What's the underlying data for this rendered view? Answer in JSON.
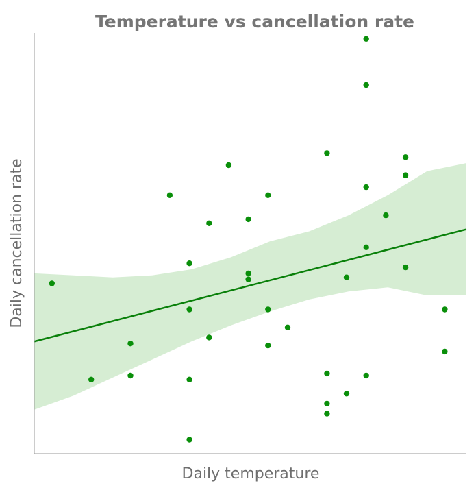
{
  "chart_data": {
    "type": "scatter",
    "title": "Temperature vs cancellation rate",
    "xlabel": "Daily temperature",
    "ylabel": "Daily cancellation rate",
    "xlim": [
      0,
      22
    ],
    "ylim": [
      0,
      21
    ],
    "grid": false,
    "colors": {
      "points": "#0a8f0a",
      "trend_line": "#0a800a",
      "confidence_band": "#d6edd3"
    },
    "series": [
      {
        "points": [
          {
            "x": 0.9,
            "y": 8.5
          },
          {
            "x": 2.9,
            "y": 3.7
          },
          {
            "x": 4.9,
            "y": 3.9
          },
          {
            "x": 4.9,
            "y": 5.5
          },
          {
            "x": 6.9,
            "y": 12.9
          },
          {
            "x": 7.9,
            "y": 9.5
          },
          {
            "x": 7.9,
            "y": 7.2
          },
          {
            "x": 7.9,
            "y": 3.7
          },
          {
            "x": 7.9,
            "y": 0.7
          },
          {
            "x": 8.9,
            "y": 11.5
          },
          {
            "x": 8.9,
            "y": 5.8
          },
          {
            "x": 9.9,
            "y": 14.4
          },
          {
            "x": 10.9,
            "y": 11.7
          },
          {
            "x": 10.9,
            "y": 9.0
          },
          {
            "x": 10.9,
            "y": 8.7
          },
          {
            "x": 11.9,
            "y": 12.9
          },
          {
            "x": 11.9,
            "y": 7.2
          },
          {
            "x": 11.9,
            "y": 5.4
          },
          {
            "x": 12.9,
            "y": 6.3
          },
          {
            "x": 14.9,
            "y": 15.0
          },
          {
            "x": 14.9,
            "y": 4.0
          },
          {
            "x": 14.9,
            "y": 2.5
          },
          {
            "x": 14.9,
            "y": 2.0
          },
          {
            "x": 15.9,
            "y": 8.8
          },
          {
            "x": 15.9,
            "y": 3.0
          },
          {
            "x": 16.9,
            "y": 20.7
          },
          {
            "x": 16.9,
            "y": 18.4
          },
          {
            "x": 16.9,
            "y": 13.3
          },
          {
            "x": 16.9,
            "y": 10.3
          },
          {
            "x": 16.9,
            "y": 3.9
          },
          {
            "x": 17.9,
            "y": 11.9
          },
          {
            "x": 18.9,
            "y": 14.8
          },
          {
            "x": 18.9,
            "y": 13.9
          },
          {
            "x": 18.9,
            "y": 9.3
          },
          {
            "x": 20.9,
            "y": 7.2
          },
          {
            "x": 20.9,
            "y": 5.1
          }
        ]
      }
    ],
    "trend_line": [
      {
        "x": 0,
        "y": 5.6
      },
      {
        "x": 22,
        "y": 11.2
      }
    ],
    "confidence_band": {
      "x": [
        0,
        2,
        4,
        6,
        8,
        10,
        12,
        14,
        16,
        18,
        20,
        22
      ],
      "lower": [
        2.2,
        2.9,
        3.8,
        4.7,
        5.6,
        6.4,
        7.1,
        7.7,
        8.1,
        8.3,
        7.9,
        7.9
      ],
      "upper": [
        9.0,
        8.9,
        8.8,
        8.9,
        9.2,
        9.8,
        10.6,
        11.1,
        11.9,
        12.9,
        14.1,
        14.5
      ]
    }
  }
}
